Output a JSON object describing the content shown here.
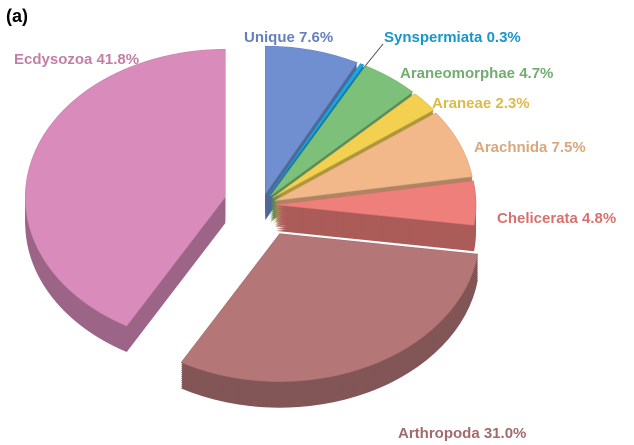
{
  "chart_data": {
    "type": "pie",
    "title": "(a)",
    "categories": [
      "Unique",
      "Synspermiata",
      "Araneomorphae",
      "Araneae",
      "Arachnida",
      "Chelicerata",
      "Arthropoda",
      "Ecdysozoa"
    ],
    "values": [
      7.6,
      0.3,
      4.7,
      2.3,
      7.5,
      4.8,
      31.0,
      41.8
    ],
    "value_labels": [
      "7.6%",
      "0.3%",
      "4.7%",
      "2.3%",
      "7.5%",
      "4.8%",
      "31.0%",
      "41.8%"
    ],
    "colors": [
      "#6f8fd0",
      "#1aa7e0",
      "#7cc07a",
      "#f3d050",
      "#f2b88a",
      "#ee7f7a",
      "#b57677",
      "#d98cbb"
    ]
  }
}
